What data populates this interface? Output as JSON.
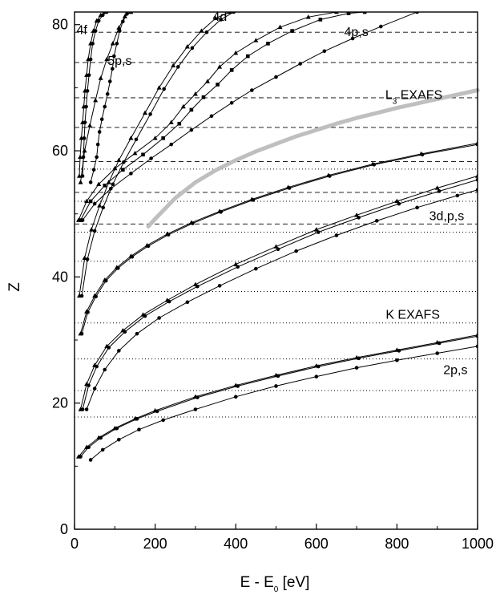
{
  "chart_data": {
    "type": "line",
    "xlabel": "E - E",
    "xlabel_sub": "0",
    "xlabel_unit": " [eV]",
    "ylabel": "Z",
    "xlim": [
      0,
      1000
    ],
    "ylim": [
      0,
      82
    ],
    "xticks": [
      "0",
      "200",
      "400",
      "600",
      "800",
      "1000"
    ],
    "yticks": [
      "0",
      "20",
      "40",
      "60",
      "80"
    ],
    "xtick_values": [
      0,
      200,
      400,
      600,
      800,
      1000
    ],
    "ytick_values": [
      0,
      20,
      40,
      60,
      80
    ],
    "grid": false,
    "annotations": [
      {
        "text": "4f",
        "x": 5,
        "y": 78.5
      },
      {
        "text": "5p,s",
        "x": 82,
        "y": 73.6
      },
      {
        "text": "4d",
        "x": 343,
        "y": 80.6
      },
      {
        "text": "4p,s",
        "x": 669,
        "y": 78.2
      },
      {
        "text": "L",
        "sub": "3",
        "suffix": " EXAFS",
        "x": 771,
        "y": 68.2
      },
      {
        "text": "3d,p,s",
        "x": 880,
        "y": 49
      },
      {
        "text": "K EXAFS",
        "x": 772,
        "y": 33.4
      },
      {
        "text": "2p,s",
        "x": 915,
        "y": 24.6
      }
    ],
    "reference_lines": {
      "dashed_z": [
        48.4,
        53.4,
        58.3,
        63.7,
        68.4,
        74.0,
        78.8
      ],
      "dotted_z": [
        17.8,
        22.0,
        27.0,
        32.7,
        37.7,
        42.5,
        47.1,
        52.0,
        57.1
      ]
    },
    "band_curve": {
      "color": "#bfbfbf",
      "x": [
        183,
        200,
        250,
        300,
        350,
        400,
        450,
        500,
        550,
        600,
        650,
        700,
        750,
        800,
        850,
        900,
        950,
        1000
      ],
      "y": [
        48,
        49.2,
        52.5,
        55.0,
        56.9,
        58.5,
        59.9,
        61.1,
        62.3,
        63.3,
        64.3,
        65.2,
        66.0,
        66.8,
        67.5,
        68.2,
        68.9,
        69.6
      ]
    },
    "series": [
      {
        "group": "2p,s",
        "marker": "triangle",
        "x": [
          10,
          30,
          60,
          100,
          150,
          200,
          300,
          400,
          500,
          600,
          700,
          800,
          900,
          1000
        ],
        "y": [
          11.5,
          13,
          14.5,
          16,
          17.5,
          18.8,
          21,
          22.8,
          24.4,
          25.9,
          27.2,
          28.4,
          29.6,
          30.8
        ]
      },
      {
        "group": "2p,s",
        "marker": "dot",
        "x": [
          15,
          35,
          65,
          105,
          155,
          205,
          305,
          405,
          505,
          605,
          705,
          805,
          905,
          1000
        ],
        "y": [
          11.5,
          13,
          14.5,
          16,
          17.5,
          18.7,
          20.9,
          22.7,
          24.3,
          25.8,
          27.1,
          28.3,
          29.5,
          30.6
        ]
      },
      {
        "group": "2p,s",
        "marker": "dot",
        "x": [
          40,
          70,
          110,
          160,
          220,
          300,
          400,
          500,
          600,
          700,
          800,
          900,
          1000
        ],
        "y": [
          11,
          12.6,
          14.2,
          15.8,
          17.3,
          19,
          21,
          22.7,
          24.2,
          25.6,
          26.8,
          27.9,
          29
        ]
      },
      {
        "group": "3d,p,s",
        "marker": "triangle",
        "x": [
          15,
          30,
          50,
          80,
          120,
          170,
          230,
          300,
          400,
          500,
          600,
          700,
          800,
          900,
          1000
        ],
        "y": [
          19,
          23,
          26,
          29,
          31.5,
          34,
          36.3,
          38.8,
          42,
          44.8,
          47.5,
          49.8,
          52,
          54.1,
          56
        ]
      },
      {
        "group": "3d,p,s",
        "marker": "dot",
        "x": [
          20,
          35,
          55,
          85,
          125,
          175,
          235,
          305,
          405,
          505,
          605,
          705,
          805,
          905,
          1000
        ],
        "y": [
          19,
          22.8,
          25.8,
          28.8,
          31.3,
          33.8,
          36.1,
          38.5,
          41.6,
          44.4,
          47.1,
          49.4,
          51.6,
          53.6,
          55.4
        ]
      },
      {
        "group": "3d,p,s",
        "marker": "dot",
        "x": [
          30,
          50,
          75,
          110,
          155,
          210,
          280,
          360,
          450,
          550,
          650,
          750,
          850,
          950,
          1000
        ],
        "y": [
          19,
          22.3,
          25.3,
          28.3,
          31,
          33.5,
          36,
          38.6,
          41.3,
          44.1,
          46.6,
          48.9,
          51,
          52.9,
          53.8
        ]
      },
      {
        "group": "3d,p,s",
        "marker": "triangle",
        "x": [
          15,
          30,
          50,
          75,
          105,
          140,
          180,
          230,
          290,
          360,
          440,
          530,
          630,
          740,
          860,
          1000
        ],
        "y": [
          31,
          34.5,
          37,
          39.5,
          41.5,
          43.3,
          45,
          46.8,
          48.6,
          50.4,
          52.3,
          54.2,
          56.1,
          57.9,
          59.5,
          61.2
        ]
      },
      {
        "group": "3d,p,s",
        "marker": "dot",
        "x": [
          18,
          33,
          53,
          78,
          108,
          143,
          183,
          233,
          293,
          363,
          443,
          533,
          633,
          743,
          863,
          1000
        ],
        "y": [
          31,
          34.4,
          36.9,
          39.4,
          41.4,
          43.2,
          44.9,
          46.7,
          48.5,
          50.3,
          52.2,
          54.1,
          56,
          57.8,
          59.4,
          61
        ]
      },
      {
        "group": "4d",
        "marker": "triangle",
        "x": [
          12,
          25,
          42,
          62,
          85,
          110,
          140,
          175,
          210,
          245,
          280,
          315,
          350,
          385
        ],
        "y": [
          37,
          43,
          47.5,
          51.3,
          55,
          58.5,
          62,
          66,
          70,
          73.5,
          76.5,
          79,
          81,
          82
        ]
      },
      {
        "group": "4d",
        "marker": "dot",
        "x": [
          18,
          32,
          50,
          71,
          95,
          122,
          153,
          188,
          222,
          257,
          292,
          328,
          363,
          395
        ],
        "y": [
          37,
          42.8,
          47.3,
          51,
          54.7,
          58.2,
          61.8,
          65.8,
          69.8,
          73.3,
          76.3,
          78.8,
          80.8,
          82
        ]
      },
      {
        "group": "4p,s",
        "marker": "triangle",
        "x": [
          10,
          30,
          60,
          100,
          150,
          200,
          240,
          270,
          300,
          330,
          360,
          400,
          450,
          510,
          580,
          650
        ],
        "y": [
          49,
          52,
          54.7,
          57.2,
          59.6,
          62,
          64.5,
          67,
          69,
          71,
          73.3,
          75.5,
          77.5,
          79.6,
          81.2,
          82
        ]
      },
      {
        "group": "4p,s",
        "marker": "square",
        "x": [
          15,
          40,
          75,
          120,
          170,
          220,
          260,
          290,
          320,
          355,
          390,
          430,
          480,
          540,
          610,
          680,
          720
        ],
        "y": [
          49,
          52,
          54.5,
          57,
          59.4,
          62,
          64.3,
          66.5,
          68.5,
          70.5,
          72.8,
          75,
          77,
          79,
          80.8,
          81.8,
          82
        ]
      },
      {
        "group": "4p,s",
        "marker": "dot",
        "x": [
          20,
          50,
          90,
          140,
          190,
          240,
          290,
          340,
          390,
          440,
          500,
          560,
          620,
          690,
          760,
          850
        ],
        "y": [
          49,
          51.6,
          54,
          56.4,
          58.8,
          61,
          63.3,
          65.5,
          67.6,
          69.6,
          71.7,
          73.8,
          75.8,
          77.8,
          79.7,
          82
        ]
      },
      {
        "group": "5p,s",
        "marker": "triangle",
        "x": [
          15,
          25,
          38,
          52,
          65,
          80,
          95,
          110,
          125,
          140
        ],
        "y": [
          55,
          60,
          64,
          68,
          71.5,
          74.5,
          77,
          79.5,
          81.3,
          82
        ]
      },
      {
        "group": "5p,s",
        "marker": "dot",
        "x": [
          40,
          48,
          55,
          58,
          62,
          68,
          75,
          82,
          88,
          94,
          98,
          105,
          112,
          120,
          130,
          140
        ],
        "y": [
          55,
          57,
          59,
          61,
          63,
          65,
          67,
          69,
          71,
          73,
          75,
          77,
          79,
          80.5,
          81.7,
          82
        ]
      },
      {
        "group": "4f",
        "marker": "triangle",
        "x": [
          12,
          14,
          17,
          20,
          23,
          26,
          30,
          34,
          40,
          47,
          55,
          65,
          75
        ],
        "y": [
          56,
          59,
          62,
          64.5,
          67,
          69.5,
          72,
          74.5,
          77,
          79,
          80.6,
          81.5,
          82
        ]
      },
      {
        "group": "4f",
        "marker": "dot",
        "x": [
          20,
          22,
          24,
          26,
          29,
          32,
          36,
          40,
          45,
          52,
          60,
          70,
          80
        ],
        "y": [
          56,
          59,
          62,
          64.5,
          67,
          69.5,
          72,
          74.5,
          77,
          79,
          80.6,
          81.5,
          82
        ]
      }
    ]
  }
}
